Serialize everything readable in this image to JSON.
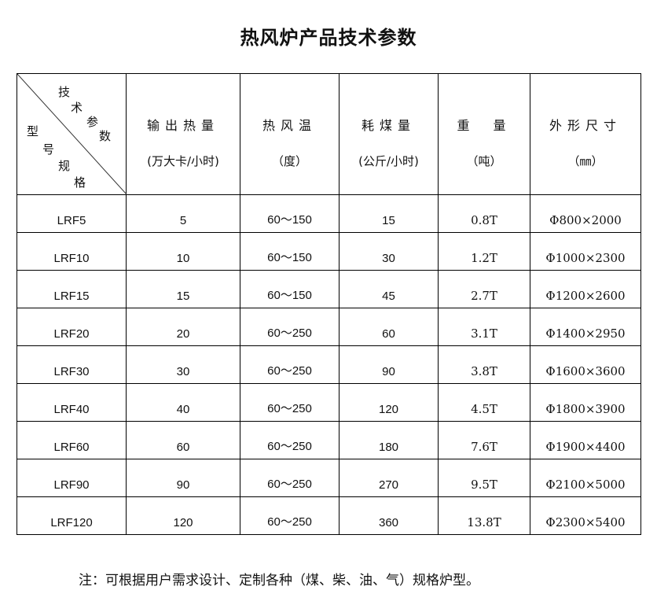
{
  "title": "热风炉产品技术参数",
  "corner": {
    "top": [
      "技",
      "术",
      "参",
      "数"
    ],
    "bottom": [
      "型",
      "号",
      "规",
      "格"
    ]
  },
  "headers": [
    {
      "main": "输出热量",
      "unit": "(万大卡/小时)"
    },
    {
      "main": "热风温",
      "unit": "（度）"
    },
    {
      "main": "耗煤量",
      "unit": "(公斤/小时)"
    },
    {
      "main": "重　量",
      "unit": "（吨）"
    },
    {
      "main": "外形尺寸",
      "unit": "（㎜）"
    }
  ],
  "rows": [
    [
      "LRF5",
      "5",
      "60～150",
      "15",
      "0.8T",
      "Φ800×2000"
    ],
    [
      "LRF10",
      "10",
      "60～150",
      "30",
      "1.2T",
      "Φ1000×2300"
    ],
    [
      "LRF15",
      "15",
      "60～150",
      "45",
      "2.7T",
      "Φ1200×2600"
    ],
    [
      "LRF20",
      "20",
      "60～250",
      "60",
      "3.1T",
      "Φ1400×2950"
    ],
    [
      "LRF30",
      "30",
      "60～250",
      "90",
      "3.8T",
      "Φ1600×3600"
    ],
    [
      "LRF40",
      "40",
      "60～250",
      "120",
      "4.5T",
      "Φ1800×3900"
    ],
    [
      "LRF60",
      "60",
      "60～250",
      "180",
      "7.6T",
      "Φ1900×4400"
    ],
    [
      "LRF90",
      "90",
      "60～250",
      "270",
      "9.5T",
      "Φ2100×5000"
    ],
    [
      "LRF120",
      "120",
      "60～250",
      "360",
      "13.8T",
      "Φ2300×5400"
    ]
  ],
  "note": "注：可根据用户需求设计、定制各种（煤、柴、油、气）规格炉型。"
}
